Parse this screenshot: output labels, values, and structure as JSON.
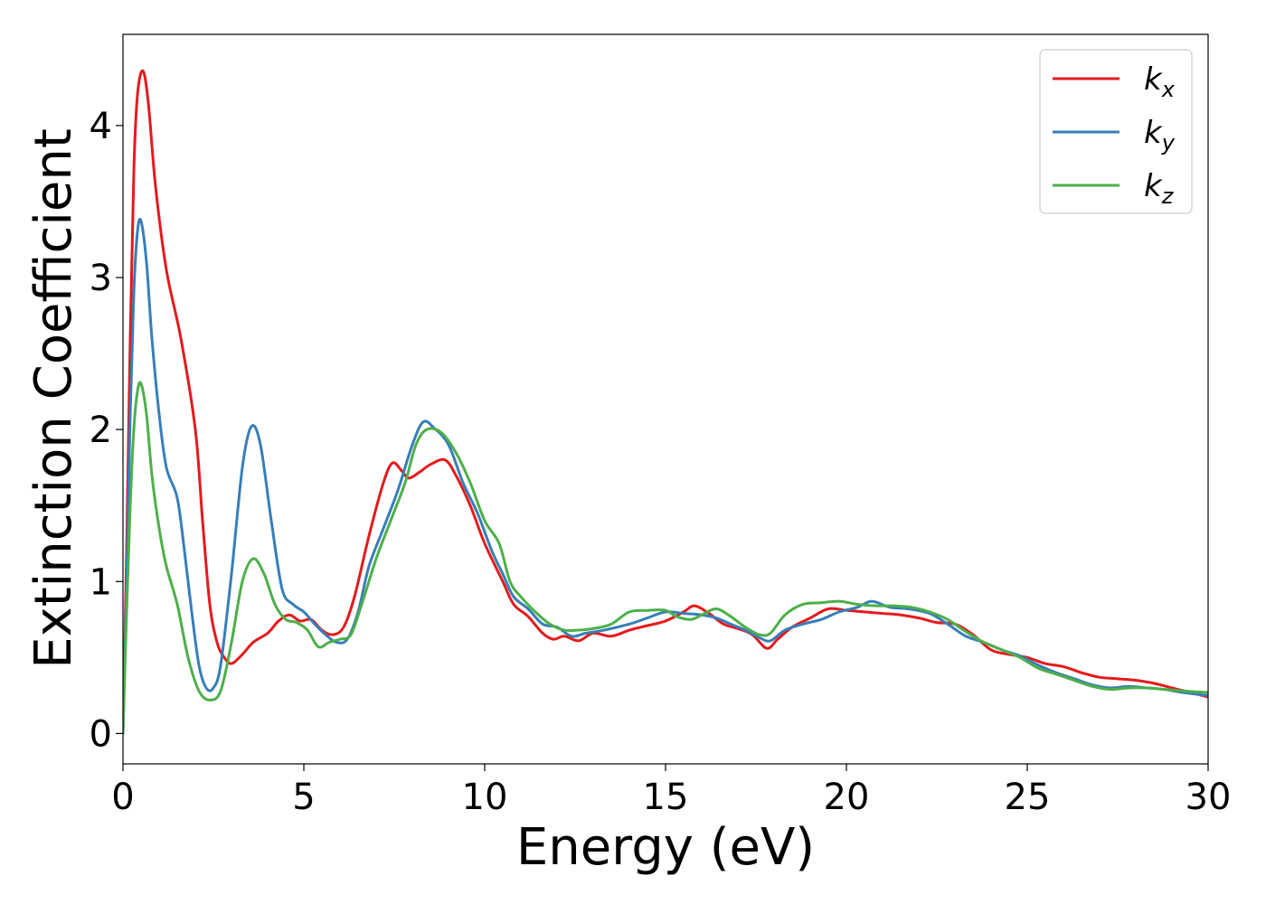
{
  "chart_data": {
    "type": "line",
    "title": "",
    "xlabel": "Energy (eV)",
    "ylabel": "Extinction Coefficient",
    "xlim": [
      0,
      30
    ],
    "ylim": [
      -0.2,
      4.6
    ],
    "xticks": [
      0,
      5,
      10,
      15,
      20,
      25,
      30
    ],
    "yticks": [
      0,
      1,
      2,
      3,
      4
    ],
    "grid": false,
    "legend_position": "top-right",
    "series": [
      {
        "name": "k_x",
        "label_base": "k",
        "label_sub": "x",
        "color": "#e41a1c",
        "points": [
          [
            0,
            0
          ],
          [
            0.1,
            1.2
          ],
          [
            0.2,
            2.6
          ],
          [
            0.3,
            3.7
          ],
          [
            0.4,
            4.2
          ],
          [
            0.55,
            4.36
          ],
          [
            0.7,
            4.15
          ],
          [
            0.9,
            3.6
          ],
          [
            1.2,
            3.05
          ],
          [
            1.6,
            2.6
          ],
          [
            2.0,
            2.0
          ],
          [
            2.2,
            1.4
          ],
          [
            2.4,
            0.85
          ],
          [
            2.6,
            0.6
          ],
          [
            2.8,
            0.5
          ],
          [
            3.0,
            0.46
          ],
          [
            3.3,
            0.52
          ],
          [
            3.6,
            0.6
          ],
          [
            4.0,
            0.66
          ],
          [
            4.3,
            0.74
          ],
          [
            4.6,
            0.78
          ],
          [
            4.9,
            0.74
          ],
          [
            5.2,
            0.75
          ],
          [
            5.5,
            0.68
          ],
          [
            5.8,
            0.65
          ],
          [
            6.1,
            0.7
          ],
          [
            6.4,
            0.9
          ],
          [
            6.8,
            1.3
          ],
          [
            7.2,
            1.65
          ],
          [
            7.45,
            1.78
          ],
          [
            7.7,
            1.73
          ],
          [
            7.9,
            1.68
          ],
          [
            8.2,
            1.72
          ],
          [
            8.5,
            1.77
          ],
          [
            8.9,
            1.8
          ],
          [
            9.2,
            1.7
          ],
          [
            9.6,
            1.5
          ],
          [
            10.0,
            1.25
          ],
          [
            10.5,
            1.0
          ],
          [
            10.8,
            0.85
          ],
          [
            11.2,
            0.77
          ],
          [
            11.6,
            0.66
          ],
          [
            11.9,
            0.62
          ],
          [
            12.2,
            0.64
          ],
          [
            12.6,
            0.61
          ],
          [
            13.0,
            0.66
          ],
          [
            13.5,
            0.64
          ],
          [
            14.0,
            0.68
          ],
          [
            14.5,
            0.71
          ],
          [
            15.0,
            0.74
          ],
          [
            15.5,
            0.8
          ],
          [
            15.8,
            0.84
          ],
          [
            16.2,
            0.79
          ],
          [
            16.6,
            0.72
          ],
          [
            17.0,
            0.69
          ],
          [
            17.4,
            0.65
          ],
          [
            17.8,
            0.56
          ],
          [
            18.1,
            0.62
          ],
          [
            18.5,
            0.7
          ],
          [
            19.0,
            0.76
          ],
          [
            19.5,
            0.82
          ],
          [
            20.0,
            0.81
          ],
          [
            20.5,
            0.8
          ],
          [
            21.0,
            0.79
          ],
          [
            21.5,
            0.78
          ],
          [
            22.0,
            0.76
          ],
          [
            22.5,
            0.73
          ],
          [
            23.0,
            0.72
          ],
          [
            23.5,
            0.65
          ],
          [
            24.0,
            0.55
          ],
          [
            24.5,
            0.52
          ],
          [
            25.0,
            0.5
          ],
          [
            25.5,
            0.46
          ],
          [
            26.0,
            0.44
          ],
          [
            26.5,
            0.4
          ],
          [
            27.0,
            0.37
          ],
          [
            27.5,
            0.36
          ],
          [
            28.0,
            0.35
          ],
          [
            28.5,
            0.33
          ],
          [
            29.0,
            0.3
          ],
          [
            29.5,
            0.27
          ],
          [
            30.0,
            0.24
          ]
        ]
      },
      {
        "name": "k_y",
        "label_base": "k",
        "label_sub": "y",
        "color": "#377eb8",
        "points": [
          [
            0,
            0
          ],
          [
            0.1,
            1.0
          ],
          [
            0.2,
            2.1
          ],
          [
            0.3,
            2.9
          ],
          [
            0.4,
            3.3
          ],
          [
            0.5,
            3.37
          ],
          [
            0.65,
            3.1
          ],
          [
            0.8,
            2.6
          ],
          [
            1.0,
            2.1
          ],
          [
            1.2,
            1.75
          ],
          [
            1.5,
            1.55
          ],
          [
            1.7,
            1.2
          ],
          [
            1.9,
            0.8
          ],
          [
            2.1,
            0.45
          ],
          [
            2.3,
            0.3
          ],
          [
            2.5,
            0.3
          ],
          [
            2.7,
            0.45
          ],
          [
            3.0,
            1.05
          ],
          [
            3.3,
            1.75
          ],
          [
            3.55,
            2.02
          ],
          [
            3.8,
            1.9
          ],
          [
            4.1,
            1.4
          ],
          [
            4.4,
            0.95
          ],
          [
            4.7,
            0.85
          ],
          [
            5.0,
            0.8
          ],
          [
            5.3,
            0.72
          ],
          [
            5.6,
            0.65
          ],
          [
            5.9,
            0.6
          ],
          [
            6.2,
            0.62
          ],
          [
            6.5,
            0.8
          ],
          [
            6.8,
            1.1
          ],
          [
            7.2,
            1.35
          ],
          [
            7.6,
            1.6
          ],
          [
            8.0,
            1.9
          ],
          [
            8.3,
            2.05
          ],
          [
            8.6,
            2.01
          ],
          [
            9.0,
            1.9
          ],
          [
            9.4,
            1.65
          ],
          [
            9.8,
            1.45
          ],
          [
            10.2,
            1.2
          ],
          [
            10.5,
            1.05
          ],
          [
            10.8,
            0.9
          ],
          [
            11.2,
            0.82
          ],
          [
            11.6,
            0.72
          ],
          [
            12.0,
            0.7
          ],
          [
            12.4,
            0.64
          ],
          [
            12.8,
            0.66
          ],
          [
            13.3,
            0.68
          ],
          [
            14.0,
            0.72
          ],
          [
            14.5,
            0.76
          ],
          [
            15.0,
            0.8
          ],
          [
            15.5,
            0.79
          ],
          [
            16.0,
            0.78
          ],
          [
            16.4,
            0.76
          ],
          [
            16.8,
            0.72
          ],
          [
            17.2,
            0.68
          ],
          [
            17.6,
            0.63
          ],
          [
            17.9,
            0.61
          ],
          [
            18.3,
            0.68
          ],
          [
            18.8,
            0.72
          ],
          [
            19.3,
            0.75
          ],
          [
            19.8,
            0.8
          ],
          [
            20.3,
            0.83
          ],
          [
            20.7,
            0.87
          ],
          [
            21.2,
            0.83
          ],
          [
            21.7,
            0.82
          ],
          [
            22.3,
            0.79
          ],
          [
            22.8,
            0.72
          ],
          [
            23.3,
            0.64
          ],
          [
            23.8,
            0.6
          ],
          [
            24.3,
            0.55
          ],
          [
            24.8,
            0.51
          ],
          [
            25.3,
            0.45
          ],
          [
            25.8,
            0.4
          ],
          [
            26.3,
            0.36
          ],
          [
            26.8,
            0.32
          ],
          [
            27.3,
            0.3
          ],
          [
            27.8,
            0.31
          ],
          [
            28.3,
            0.3
          ],
          [
            28.8,
            0.29
          ],
          [
            29.3,
            0.27
          ],
          [
            30.0,
            0.25
          ]
        ]
      },
      {
        "name": "k_z",
        "label_base": "k",
        "label_sub": "z",
        "color": "#4daf4a",
        "points": [
          [
            0,
            0
          ],
          [
            0.1,
            0.8
          ],
          [
            0.2,
            1.5
          ],
          [
            0.3,
            2.0
          ],
          [
            0.4,
            2.25
          ],
          [
            0.5,
            2.3
          ],
          [
            0.65,
            2.1
          ],
          [
            0.8,
            1.7
          ],
          [
            1.0,
            1.35
          ],
          [
            1.2,
            1.1
          ],
          [
            1.5,
            0.85
          ],
          [
            1.8,
            0.5
          ],
          [
            2.1,
            0.28
          ],
          [
            2.4,
            0.22
          ],
          [
            2.7,
            0.28
          ],
          [
            3.0,
            0.6
          ],
          [
            3.3,
            1.0
          ],
          [
            3.6,
            1.15
          ],
          [
            3.9,
            1.05
          ],
          [
            4.2,
            0.85
          ],
          [
            4.5,
            0.75
          ],
          [
            4.8,
            0.73
          ],
          [
            5.1,
            0.68
          ],
          [
            5.4,
            0.57
          ],
          [
            5.7,
            0.6
          ],
          [
            6.0,
            0.62
          ],
          [
            6.3,
            0.65
          ],
          [
            6.6,
            0.85
          ],
          [
            7.0,
            1.15
          ],
          [
            7.4,
            1.4
          ],
          [
            7.8,
            1.65
          ],
          [
            8.1,
            1.9
          ],
          [
            8.4,
            2.0
          ],
          [
            8.8,
            1.98
          ],
          [
            9.2,
            1.85
          ],
          [
            9.6,
            1.65
          ],
          [
            10.0,
            1.4
          ],
          [
            10.4,
            1.25
          ],
          [
            10.7,
            1.0
          ],
          [
            11.0,
            0.9
          ],
          [
            11.4,
            0.8
          ],
          [
            11.8,
            0.72
          ],
          [
            12.2,
            0.68
          ],
          [
            12.6,
            0.68
          ],
          [
            13.0,
            0.69
          ],
          [
            13.5,
            0.72
          ],
          [
            14.0,
            0.8
          ],
          [
            14.5,
            0.81
          ],
          [
            15.0,
            0.81
          ],
          [
            15.3,
            0.77
          ],
          [
            15.7,
            0.75
          ],
          [
            16.0,
            0.78
          ],
          [
            16.4,
            0.82
          ],
          [
            16.8,
            0.77
          ],
          [
            17.2,
            0.7
          ],
          [
            17.6,
            0.65
          ],
          [
            17.9,
            0.66
          ],
          [
            18.3,
            0.78
          ],
          [
            18.8,
            0.85
          ],
          [
            19.3,
            0.86
          ],
          [
            19.8,
            0.87
          ],
          [
            20.3,
            0.85
          ],
          [
            20.8,
            0.84
          ],
          [
            21.3,
            0.84
          ],
          [
            21.8,
            0.83
          ],
          [
            22.3,
            0.8
          ],
          [
            22.8,
            0.75
          ],
          [
            23.3,
            0.67
          ],
          [
            23.8,
            0.6
          ],
          [
            24.3,
            0.55
          ],
          [
            24.8,
            0.5
          ],
          [
            25.3,
            0.43
          ],
          [
            25.8,
            0.39
          ],
          [
            26.3,
            0.35
          ],
          [
            26.8,
            0.31
          ],
          [
            27.3,
            0.29
          ],
          [
            27.8,
            0.3
          ],
          [
            28.3,
            0.3
          ],
          [
            28.8,
            0.29
          ],
          [
            29.3,
            0.28
          ],
          [
            30.0,
            0.27
          ]
        ]
      }
    ]
  }
}
